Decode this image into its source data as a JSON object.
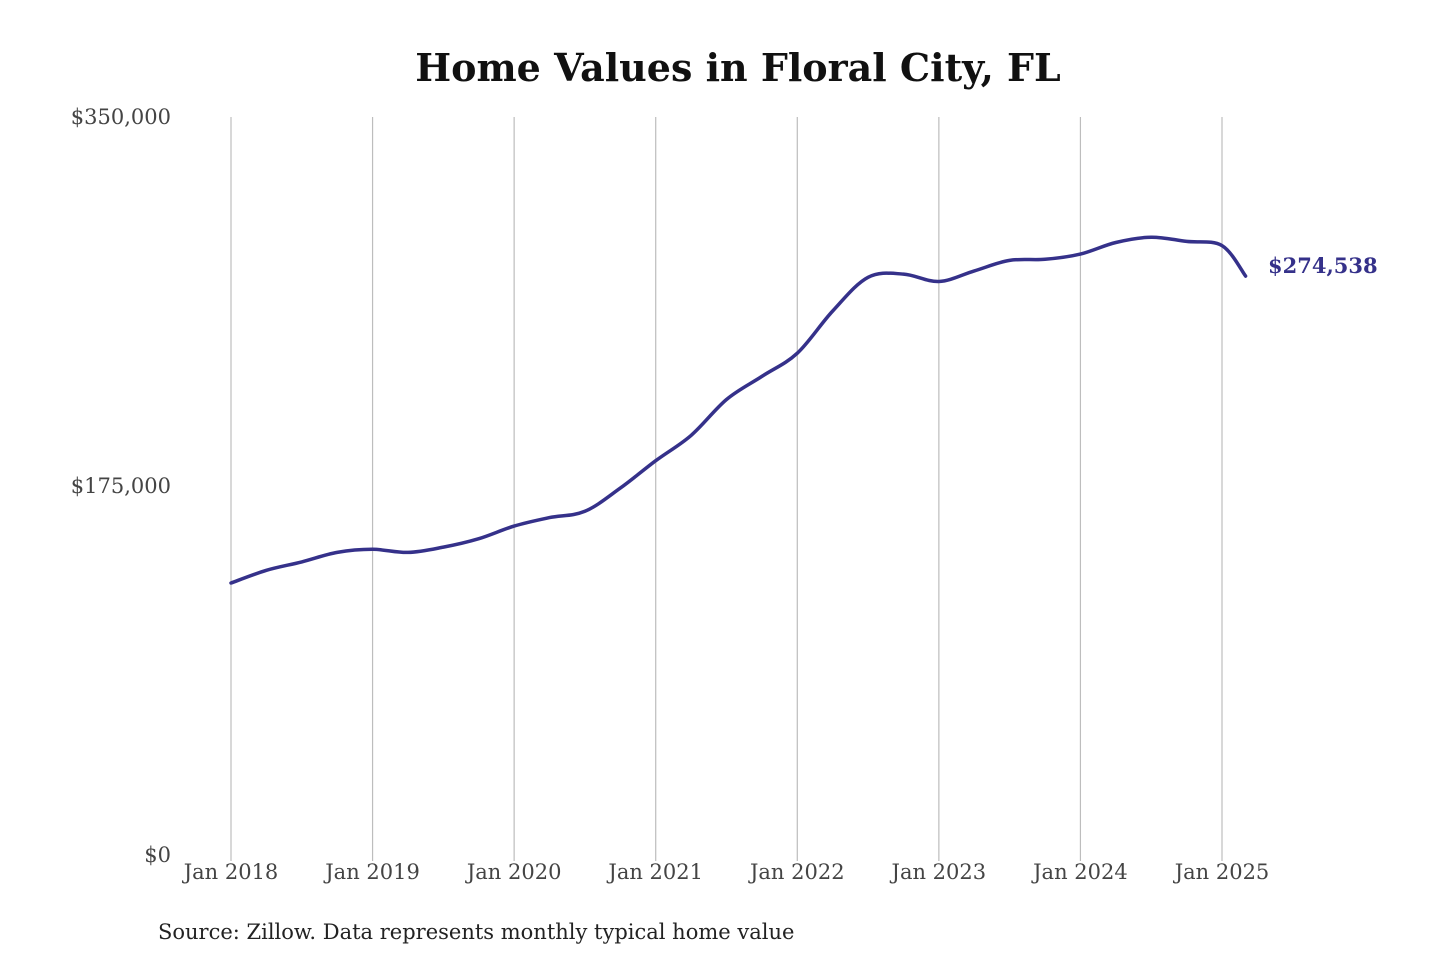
{
  "chart_data": {
    "type": "line",
    "title": "Home Values in Floral City, FL",
    "source": "Source: Zillow. Data represents monthly typical home value",
    "y_ticks": [
      {
        "value": 0,
        "label": "$0"
      },
      {
        "value": 175000,
        "label": "$175,000"
      },
      {
        "value": 350000,
        "label": "$350,000"
      }
    ],
    "x_ticks": [
      {
        "value": "2018-01",
        "label": "Jan 2018"
      },
      {
        "value": "2019-01",
        "label": "Jan 2019"
      },
      {
        "value": "2020-01",
        "label": "Jan 2020"
      },
      {
        "value": "2021-01",
        "label": "Jan 2021"
      },
      {
        "value": "2022-01",
        "label": "Jan 2022"
      },
      {
        "value": "2023-01",
        "label": "Jan 2023"
      },
      {
        "value": "2024-01",
        "label": "Jan 2024"
      },
      {
        "value": "2025-01",
        "label": "Jan 2025"
      }
    ],
    "ylim": [
      0,
      350000
    ],
    "xlim": [
      "2018-01",
      "2025-03"
    ],
    "grid": {
      "vertical": true,
      "horizontal": false
    },
    "line_color": "#35318a",
    "end_label": "$274,538",
    "series": [
      {
        "points": [
          [
            "2018-01",
            129000
          ],
          [
            "2018-04",
            135000
          ],
          [
            "2018-07",
            139000
          ],
          [
            "2018-10",
            143500
          ],
          [
            "2019-01",
            145000
          ],
          [
            "2019-04",
            143500
          ],
          [
            "2019-07",
            146000
          ],
          [
            "2019-10",
            150000
          ],
          [
            "2020-01",
            156000
          ],
          [
            "2020-04",
            160000
          ],
          [
            "2020-07",
            163000
          ],
          [
            "2020-10",
            174000
          ],
          [
            "2021-01",
            187000
          ],
          [
            "2021-04",
            199000
          ],
          [
            "2021-07",
            216000
          ],
          [
            "2021-10",
            227000
          ],
          [
            "2022-01",
            238000
          ],
          [
            "2022-04",
            258000
          ],
          [
            "2022-07",
            274000
          ],
          [
            "2022-10",
            275500
          ],
          [
            "2023-01",
            272000
          ],
          [
            "2023-04",
            277000
          ],
          [
            "2023-07",
            282000
          ],
          [
            "2023-10",
            282500
          ],
          [
            "2024-01",
            285000
          ],
          [
            "2024-04",
            290500
          ],
          [
            "2024-07",
            293000
          ],
          [
            "2024-10",
            291000
          ],
          [
            "2025-01",
            289000
          ],
          [
            "2025-03",
            274538
          ]
        ]
      }
    ]
  }
}
